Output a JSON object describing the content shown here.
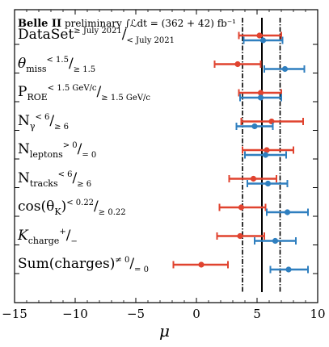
{
  "chart_data": {
    "type": "scatter",
    "title": {
      "experiment": "Belle II",
      "status": "preliminary",
      "luminosity": "∫ℒdt = (362 + 42) fb⁻¹"
    },
    "xlabel": "μ",
    "xlim": [
      -15,
      10
    ],
    "x_ticks": [
      "−15",
      "−10",
      "−5",
      "0",
      "5",
      "10"
    ],
    "x_tick_values": [
      -15,
      -10,
      -5,
      0,
      5,
      10
    ],
    "reference_lines": {
      "central": 5.4,
      "band": [
        3.8,
        6.9
      ]
    },
    "colors": {
      "red": "#e0432f",
      "blue": "#2f7fbf",
      "line": "#000000"
    },
    "categories": [
      {
        "main": "DataSet",
        "sup1": "≥ July 2021",
        "sub2": "< July 2021"
      },
      {
        "main": "θ",
        "main_sub": "miss",
        "sup1": "< 1.5",
        "sub2": "≥ 1.5"
      },
      {
        "main": "P",
        "main_sub": "ROE",
        "sup1": "< 1.5 GeV/c",
        "sub2": "≥ 1.5 GeV/c"
      },
      {
        "main": "N",
        "main_sub": "γ",
        "sup1": "< 6",
        "sub2": "≥ 6"
      },
      {
        "main": "N",
        "main_sub": "leptons",
        "sup1": "> 0",
        "sub2": "= 0"
      },
      {
        "main": "N",
        "main_sub": "tracks",
        "sup1": "< 6",
        "sub2": "≥ 6"
      },
      {
        "main": "cos(θ",
        "main_sub": "K",
        "main_tail": ")",
        "sup1": "< 0.22",
        "sub2": "≥ 0.22"
      },
      {
        "main": "K",
        "main_sub": "charge",
        "sup1": "+",
        "sub2": "−"
      },
      {
        "main": "Sum(charges)",
        "sup1": "≠ 0",
        "sub2": "= 0"
      }
    ],
    "series": [
      {
        "color": "red",
        "points": [
          {
            "x": 5.2,
            "xmin": 3.5,
            "xmax": 7.0
          },
          {
            "x": 3.4,
            "xmin": 1.5,
            "xmax": 5.3
          },
          {
            "x": 5.3,
            "xmin": 3.5,
            "xmax": 7.0
          },
          {
            "x": 6.2,
            "xmin": 3.7,
            "xmax": 8.8
          },
          {
            "x": 5.8,
            "xmin": 3.8,
            "xmax": 8.0
          },
          {
            "x": 4.7,
            "xmin": 2.7,
            "xmax": 6.6
          },
          {
            "x": 3.7,
            "xmin": 1.9,
            "xmax": 5.7
          },
          {
            "x": 3.6,
            "xmin": 1.7,
            "xmax": 5.6
          },
          {
            "x": 0.4,
            "xmin": -1.9,
            "xmax": 2.6
          }
        ]
      },
      {
        "color": "blue",
        "points": [
          {
            "x": 5.5,
            "xmin": 3.9,
            "xmax": 7.1
          },
          {
            "x": 7.3,
            "xmin": 5.6,
            "xmax": 8.9
          },
          {
            "x": 5.3,
            "xmin": 3.6,
            "xmax": 7.0
          },
          {
            "x": 4.8,
            "xmin": 3.3,
            "xmax": 6.3
          },
          {
            "x": 5.7,
            "xmin": 4.0,
            "xmax": 7.4
          },
          {
            "x": 5.9,
            "xmin": 4.2,
            "xmax": 7.5
          },
          {
            "x": 7.5,
            "xmin": 5.8,
            "xmax": 9.2
          },
          {
            "x": 6.5,
            "xmin": 4.8,
            "xmax": 8.2
          },
          {
            "x": 7.6,
            "xmin": 6.1,
            "xmax": 9.2
          }
        ]
      }
    ],
    "grid": false,
    "legend": "none"
  }
}
